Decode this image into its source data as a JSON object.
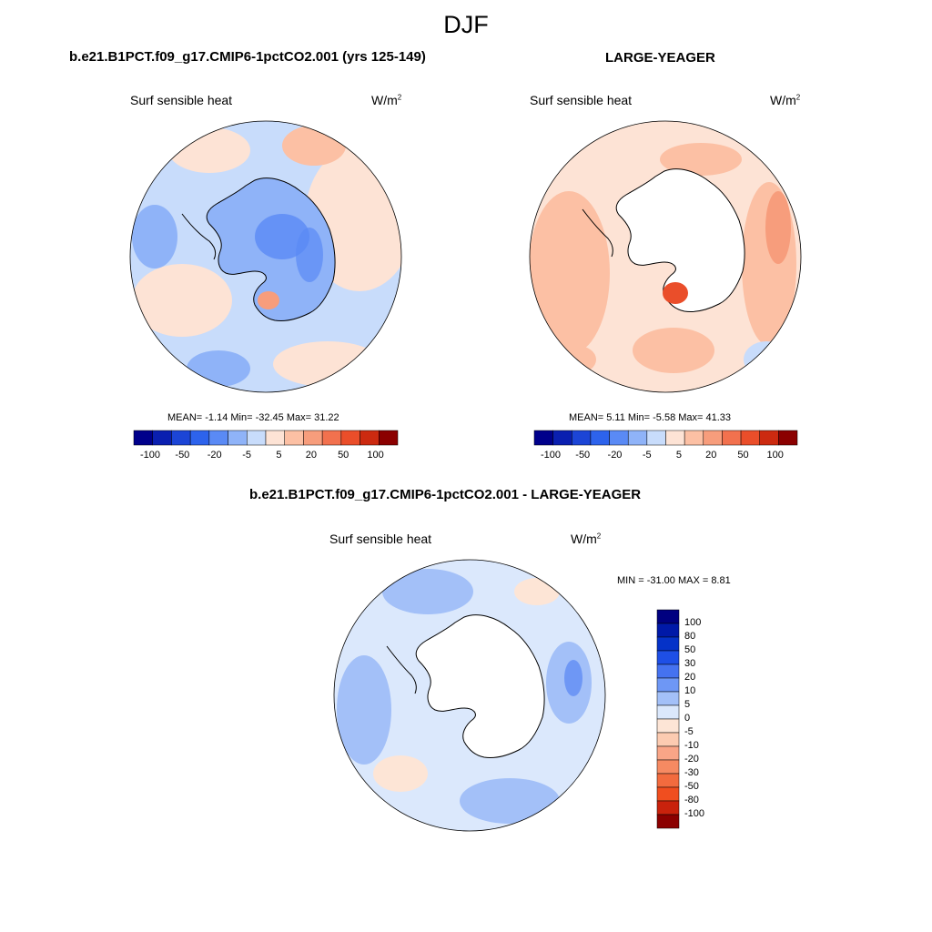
{
  "figure": {
    "title": "DJF"
  },
  "colors": {
    "levels": [
      "#00008b",
      "#0a1fb0",
      "#1c45d6",
      "#2d63ec",
      "#5a8af5",
      "#8fb3f8",
      "#c8dcfb",
      "#fde3d5",
      "#fcc0a4",
      "#f79d7c",
      "#f2714e",
      "#ea4e2a",
      "#cc2a10",
      "#8b0000"
    ],
    "diff": [
      "#000080",
      "#0019a8",
      "#0532c8",
      "#1e4fe6",
      "#4572f0",
      "#6e97f5",
      "#a3c0f8",
      "#dbe8fc",
      "#fde5d6",
      "#fccbb1",
      "#f9a587",
      "#f68a62",
      "#f26b3e",
      "#f04e1f",
      "#c9220c",
      "#8b0000"
    ],
    "land": "#ffffff",
    "coast": "#000000"
  },
  "panels": {
    "left": {
      "title": "b.e21.B1PCT.f09_g17.CMIP6-1pctCO2.001 (yrs 125-149)",
      "variable": "Surf sensible heat",
      "units": "W/m",
      "units_exp": "2",
      "stats": "MEAN=  -1.14  Min= -32.45  Max=  31.22"
    },
    "right": {
      "title": "LARGE-YEAGER",
      "variable": "Surf sensible heat",
      "units": "W/m",
      "units_exp": "2",
      "stats": "MEAN=   5.11  Min=  -5.58  Max=  41.33"
    },
    "diff": {
      "title": "b.e21.B1PCT.f09_g17.CMIP6-1pctCO2.001 - LARGE-YEAGER",
      "variable": "Surf sensible heat",
      "units": "W/m",
      "units_exp": "2",
      "stats": "MIN = -31.00 MAX =   8.81"
    }
  },
  "colorbar_levels": [
    "-100",
    "-50",
    "-20",
    "-5",
    "5",
    "20",
    "50",
    "100"
  ],
  "diff_colorbar_levels": [
    "100",
    "80",
    "50",
    "30",
    "20",
    "10",
    "5",
    "0",
    "-5",
    "-10",
    "-20",
    "-30",
    "-50",
    "-80",
    "-100"
  ]
}
